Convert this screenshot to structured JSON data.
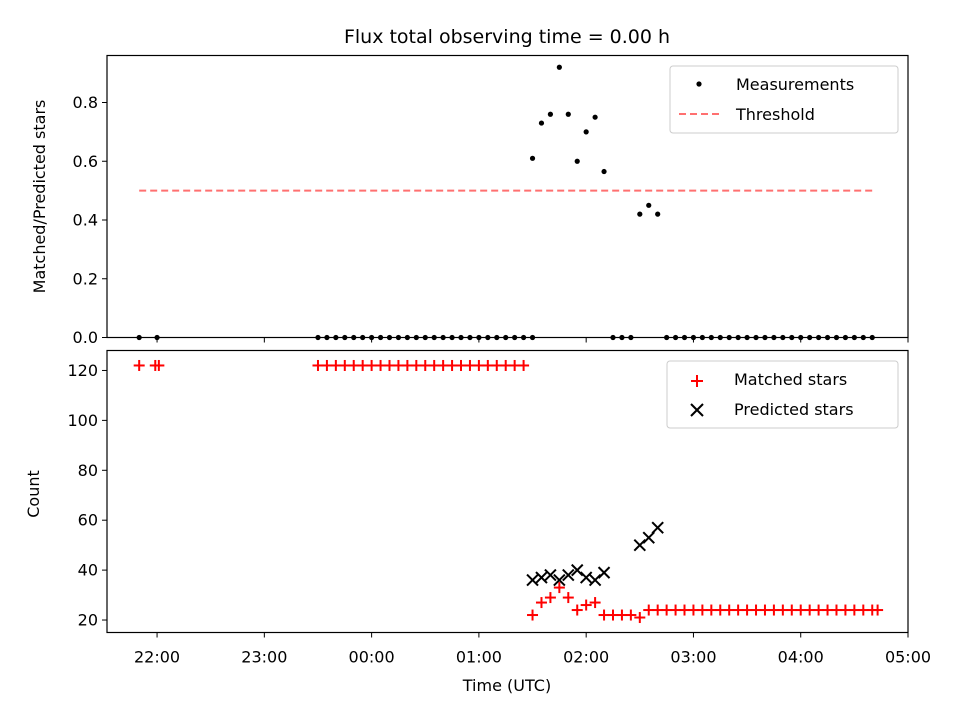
{
  "chart_data": [
    {
      "type": "scatter",
      "title": "Flux total observing time = 0.00 h",
      "xlabel": "",
      "ylabel": "Matched/Predicted stars",
      "ylim": [
        0,
        0.96
      ],
      "yticks": [
        "0.0",
        "0.2",
        "0.4",
        "0.6",
        "0.8"
      ],
      "xlim": [
        "21:32",
        "05:00"
      ],
      "legend_position": "top-right",
      "series": [
        {
          "name": "Measurements",
          "marker": "dot",
          "color": "#000000",
          "points": [
            [
              "21:50",
              0
            ],
            [
              "22:00",
              0
            ],
            [
              "23:30",
              0
            ],
            [
              "23:35",
              0
            ],
            [
              "23:40",
              0
            ],
            [
              "23:45",
              0
            ],
            [
              "23:50",
              0
            ],
            [
              "23:55",
              0
            ],
            [
              "00:00",
              0
            ],
            [
              "00:05",
              0
            ],
            [
              "00:10",
              0
            ],
            [
              "00:15",
              0
            ],
            [
              "00:20",
              0
            ],
            [
              "00:25",
              0
            ],
            [
              "00:30",
              0
            ],
            [
              "00:35",
              0
            ],
            [
              "00:40",
              0
            ],
            [
              "00:45",
              0
            ],
            [
              "00:50",
              0
            ],
            [
              "00:55",
              0
            ],
            [
              "01:00",
              0
            ],
            [
              "01:05",
              0
            ],
            [
              "01:10",
              0
            ],
            [
              "01:15",
              0
            ],
            [
              "01:20",
              0
            ],
            [
              "01:25",
              0
            ],
            [
              "01:30",
              0
            ],
            [
              "01:30",
              0.61
            ],
            [
              "01:35",
              0.73
            ],
            [
              "01:40",
              0.76
            ],
            [
              "01:45",
              0.92
            ],
            [
              "01:50",
              0.76
            ],
            [
              "01:55",
              0.6
            ],
            [
              "02:00",
              0.7
            ],
            [
              "02:05",
              0.75
            ],
            [
              "02:10",
              0.565
            ],
            [
              "02:15",
              0
            ],
            [
              "02:20",
              0
            ],
            [
              "02:25",
              0
            ],
            [
              "02:30",
              0.42
            ],
            [
              "02:35",
              0.45
            ],
            [
              "02:40",
              0.42
            ],
            [
              "02:45",
              0
            ],
            [
              "02:50",
              0
            ],
            [
              "02:55",
              0
            ],
            [
              "03:00",
              0
            ],
            [
              "03:05",
              0
            ],
            [
              "03:10",
              0
            ],
            [
              "03:15",
              0
            ],
            [
              "03:20",
              0
            ],
            [
              "03:25",
              0
            ],
            [
              "03:30",
              0
            ],
            [
              "03:35",
              0
            ],
            [
              "03:40",
              0
            ],
            [
              "03:45",
              0
            ],
            [
              "03:50",
              0
            ],
            [
              "03:55",
              0
            ],
            [
              "04:00",
              0
            ],
            [
              "04:05",
              0
            ],
            [
              "04:10",
              0
            ],
            [
              "04:15",
              0
            ],
            [
              "04:20",
              0
            ],
            [
              "04:25",
              0
            ],
            [
              "04:30",
              0
            ],
            [
              "04:35",
              0
            ],
            [
              "04:40",
              0
            ]
          ]
        },
        {
          "name": "Threshold",
          "marker": "dashed-line",
          "color": "#ff7070",
          "points": [
            [
              "21:50",
              0.5
            ],
            [
              "04:40",
              0.5
            ]
          ]
        }
      ]
    },
    {
      "type": "scatter",
      "title": "",
      "xlabel": "Time (UTC)",
      "ylabel": "Count",
      "ylim": [
        15,
        128
      ],
      "yticks": [
        "20",
        "40",
        "60",
        "80",
        "100",
        "120"
      ],
      "xlim": [
        "21:32",
        "05:00"
      ],
      "xticks": [
        "22:00",
        "23:00",
        "00:00",
        "01:00",
        "02:00",
        "03:00",
        "04:00",
        "05:00"
      ],
      "legend_position": "top-right",
      "series": [
        {
          "name": "Matched stars",
          "marker": "plus",
          "color": "#ff0000",
          "points": [
            [
              "21:50",
              122
            ],
            [
              "21:59",
              122
            ],
            [
              "22:01",
              122
            ],
            [
              "23:30",
              122
            ],
            [
              "23:35",
              122
            ],
            [
              "23:40",
              122
            ],
            [
              "23:45",
              122
            ],
            [
              "23:50",
              122
            ],
            [
              "23:55",
              122
            ],
            [
              "00:00",
              122
            ],
            [
              "00:05",
              122
            ],
            [
              "00:10",
              122
            ],
            [
              "00:15",
              122
            ],
            [
              "00:20",
              122
            ],
            [
              "00:25",
              122
            ],
            [
              "00:30",
              122
            ],
            [
              "00:35",
              122
            ],
            [
              "00:40",
              122
            ],
            [
              "00:45",
              122
            ],
            [
              "00:50",
              122
            ],
            [
              "00:55",
              122
            ],
            [
              "01:00",
              122
            ],
            [
              "01:05",
              122
            ],
            [
              "01:10",
              122
            ],
            [
              "01:15",
              122
            ],
            [
              "01:20",
              122
            ],
            [
              "01:25",
              122
            ],
            [
              "01:30",
              22
            ],
            [
              "01:35",
              27
            ],
            [
              "01:40",
              29
            ],
            [
              "01:45",
              33
            ],
            [
              "01:50",
              29
            ],
            [
              "01:55",
              24
            ],
            [
              "02:00",
              26
            ],
            [
              "02:05",
              27
            ],
            [
              "02:10",
              22
            ],
            [
              "02:15",
              22
            ],
            [
              "02:20",
              22
            ],
            [
              "02:25",
              22
            ],
            [
              "02:30",
              21
            ],
            [
              "02:35",
              24
            ],
            [
              "02:40",
              24
            ],
            [
              "02:45",
              24
            ],
            [
              "02:50",
              24
            ],
            [
              "02:55",
              24
            ],
            [
              "03:00",
              24
            ],
            [
              "03:05",
              24
            ],
            [
              "03:10",
              24
            ],
            [
              "03:15",
              24
            ],
            [
              "03:20",
              24
            ],
            [
              "03:25",
              24
            ],
            [
              "03:30",
              24
            ],
            [
              "03:35",
              24
            ],
            [
              "03:40",
              24
            ],
            [
              "03:45",
              24
            ],
            [
              "03:50",
              24
            ],
            [
              "03:55",
              24
            ],
            [
              "04:00",
              24
            ],
            [
              "04:05",
              24
            ],
            [
              "04:10",
              24
            ],
            [
              "04:15",
              24
            ],
            [
              "04:20",
              24
            ],
            [
              "04:25",
              24
            ],
            [
              "04:30",
              24
            ],
            [
              "04:35",
              24
            ],
            [
              "04:40",
              24
            ],
            [
              "04:43",
              24
            ]
          ]
        },
        {
          "name": "Predicted stars",
          "marker": "x",
          "color": "#000000",
          "points": [
            [
              "01:30",
              36
            ],
            [
              "01:35",
              37
            ],
            [
              "01:40",
              38
            ],
            [
              "01:45",
              36
            ],
            [
              "01:50",
              38
            ],
            [
              "01:55",
              40
            ],
            [
              "02:00",
              37
            ],
            [
              "02:05",
              36
            ],
            [
              "02:10",
              39
            ],
            [
              "02:30",
              50
            ],
            [
              "02:35",
              53
            ],
            [
              "02:40",
              57
            ]
          ]
        }
      ]
    }
  ]
}
